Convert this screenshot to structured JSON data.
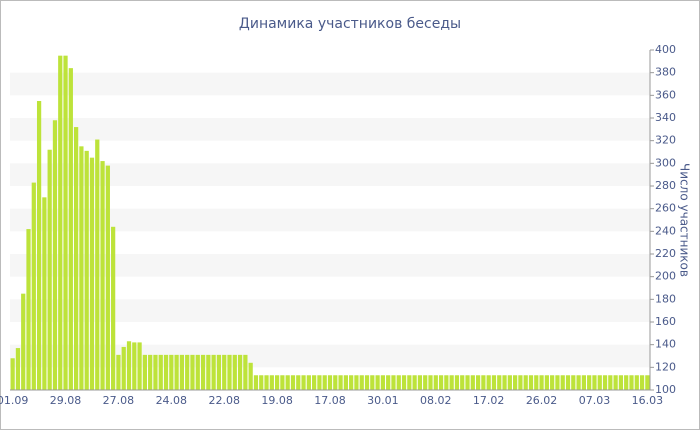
{
  "chart_data": {
    "type": "bar",
    "title": "Динамика участников беседы",
    "y_axis_label": "Число участников",
    "categories": [
      "01.09",
      null,
      null,
      null,
      null,
      null,
      null,
      null,
      null,
      null,
      "29.08",
      null,
      null,
      null,
      null,
      null,
      null,
      null,
      null,
      null,
      "27.08",
      null,
      null,
      null,
      null,
      null,
      null,
      null,
      null,
      null,
      "24.08",
      null,
      null,
      null,
      null,
      null,
      null,
      null,
      null,
      null,
      "22.08",
      null,
      null,
      null,
      null,
      null,
      null,
      null,
      null,
      null,
      "19.08",
      null,
      null,
      null,
      null,
      null,
      null,
      null,
      null,
      null,
      "17.08",
      null,
      null,
      null,
      null,
      null,
      null,
      null,
      null,
      null,
      "30.01",
      null,
      null,
      null,
      null,
      null,
      null,
      null,
      null,
      null,
      "08.02",
      null,
      null,
      null,
      null,
      null,
      null,
      null,
      null,
      null,
      "17.02",
      null,
      null,
      null,
      null,
      null,
      null,
      null,
      null,
      null,
      "26.02",
      null,
      null,
      null,
      null,
      null,
      null,
      null,
      null,
      null,
      "07.03",
      null,
      null,
      null,
      null,
      null,
      null,
      null,
      null,
      null,
      "16.03"
    ],
    "values": [
      128,
      137,
      185,
      242,
      283,
      355,
      270,
      312,
      338,
      395,
      395,
      384,
      332,
      315,
      311,
      305,
      321,
      302,
      298,
      244,
      131,
      138,
      143,
      142,
      142,
      131,
      131,
      131,
      131,
      131,
      131,
      131,
      131,
      131,
      131,
      131,
      131,
      131,
      131,
      131,
      131,
      131,
      131,
      131,
      131,
      124,
      113,
      113,
      113,
      113,
      113,
      113,
      113,
      113,
      113,
      113,
      113,
      113,
      113,
      113,
      113,
      113,
      113,
      113,
      113,
      113,
      113,
      113,
      113,
      113,
      113,
      113,
      113,
      113,
      113,
      113,
      113,
      113,
      113,
      113,
      113,
      113,
      113,
      113,
      113,
      113,
      113,
      113,
      113,
      113,
      113,
      113,
      113,
      113,
      113,
      113,
      113,
      113,
      113,
      113,
      113,
      113,
      113,
      113,
      113,
      113,
      113,
      113,
      113,
      113,
      113,
      113,
      113,
      113,
      113,
      113,
      113,
      113,
      113,
      113,
      113
    ],
    "color": "#bde33a",
    "ylim": [
      100,
      400
    ],
    "yticks": [
      100,
      120,
      140,
      160,
      180,
      200,
      220,
      240,
      260,
      280,
      300,
      320,
      340,
      360,
      380,
      400
    ],
    "grid": true
  }
}
